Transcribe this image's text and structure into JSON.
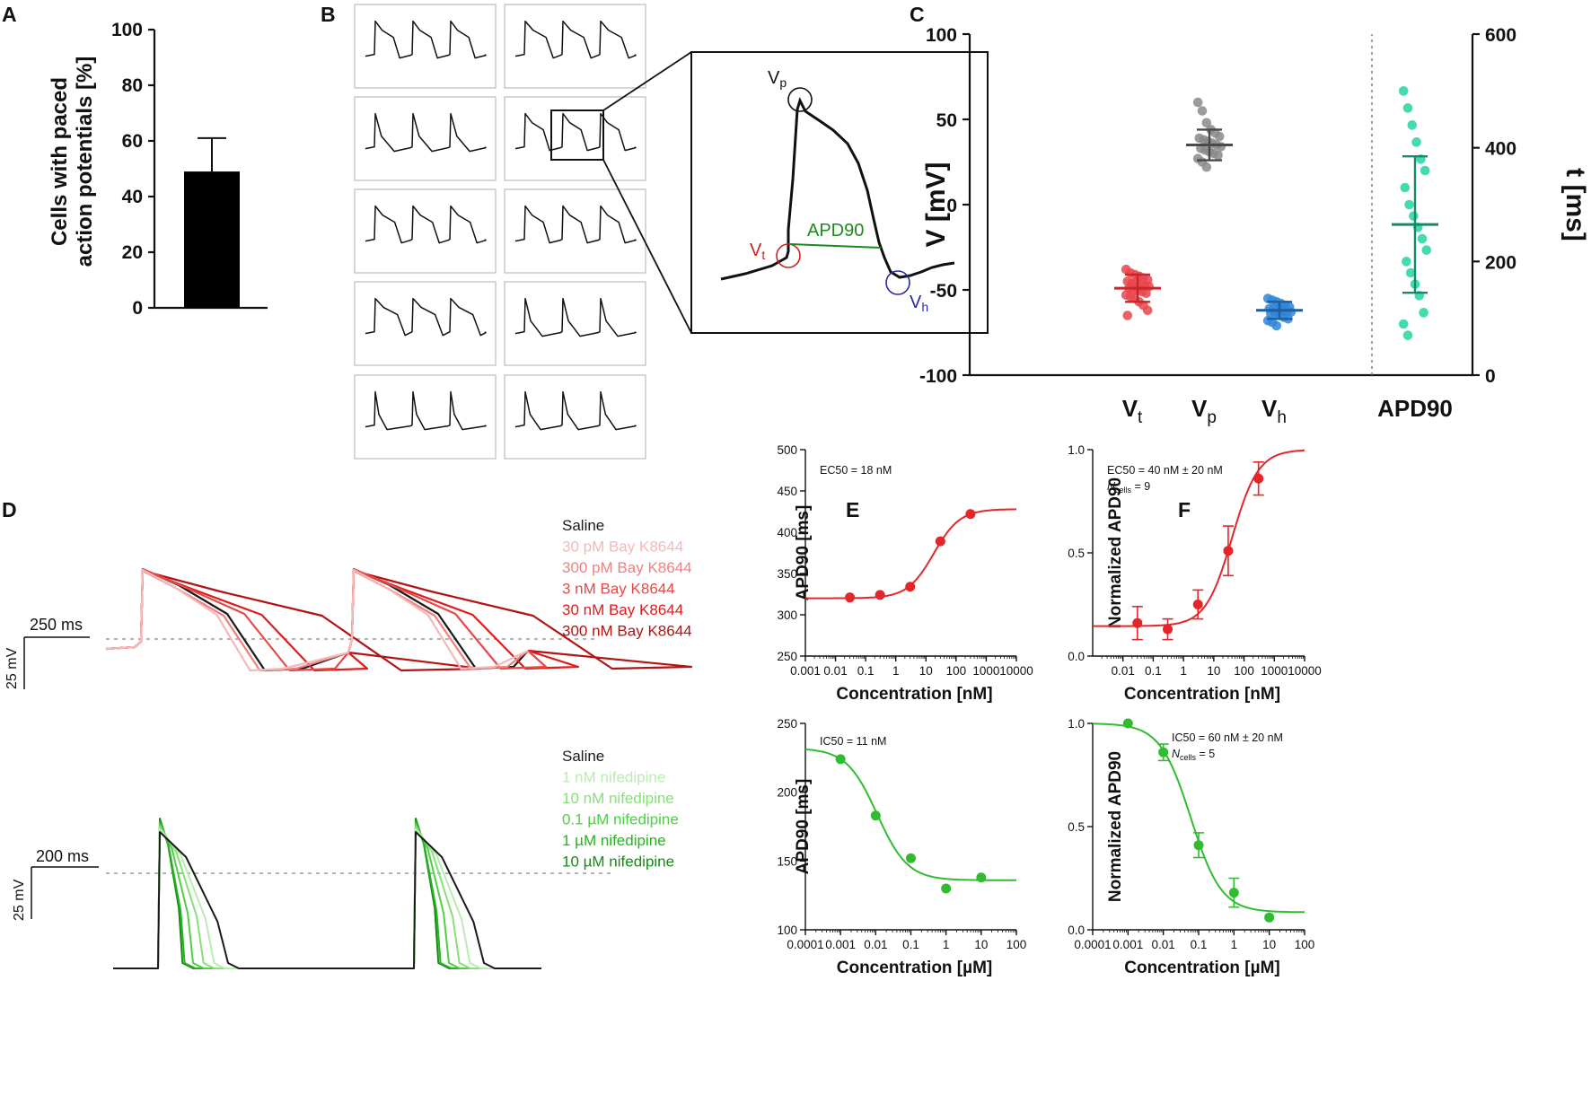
{
  "panel_labels": {
    "a": "A",
    "b": "B",
    "c": "C",
    "d": "D",
    "e": "E",
    "f": "F"
  },
  "panel_b": {
    "vp_label": "V",
    "vp_sub": "p",
    "vt_label": "V",
    "vt_sub": "t",
    "vh_label": "V",
    "vh_sub": "h",
    "apd_label": "APD90"
  },
  "panel_d": {
    "bay_scale": {
      "time": "250 ms",
      "voltage": "25 mV"
    },
    "nif_scale": {
      "time": "200 ms",
      "voltage": "25 mV"
    }
  },
  "colors": {
    "bay": [
      "#1a1a1a",
      "#f5b9b9",
      "#f08080",
      "#e84848",
      "#dd1c1c",
      "#b31313"
    ],
    "nif": [
      "#1a1a1a",
      "#b9ecb0",
      "#86e076",
      "#4fcf44",
      "#25b41f",
      "#168a17"
    ],
    "vt": "#e8474b",
    "vp": "#8a8a8a",
    "vh": "#2f86d8",
    "apd": "#26d3a3",
    "fit_red": "#e4262a",
    "fit_green": "#2fbd2f"
  },
  "chart_data": [
    {
      "id": "A",
      "type": "bar",
      "title": "",
      "xlabel": "",
      "ylabel": "Cells with paced action potentials [%]",
      "ylim": [
        0,
        100
      ],
      "yticks": [
        0,
        20,
        40,
        60,
        80,
        100
      ],
      "categories": [
        ""
      ],
      "values": [
        49
      ],
      "error": [
        12
      ]
    },
    {
      "id": "C",
      "type": "scatter",
      "ylabel": "V [mV]",
      "ylim": [
        -100,
        100
      ],
      "yticks": [
        -100,
        -50,
        0,
        50,
        100
      ],
      "ylabel_right": "t [ms]",
      "ylim_right": [
        0,
        600
      ],
      "yticks_right": [
        0,
        200,
        400,
        600
      ],
      "categories": [
        {
          "main": "V",
          "sub": "t"
        },
        {
          "main": "V",
          "sub": "p"
        },
        {
          "main": "V",
          "sub": "h"
        },
        {
          "main": "APD90",
          "sub": ""
        }
      ],
      "series": [
        {
          "name": "Vt",
          "axis": "left",
          "mean": -49,
          "sd": 8,
          "values": [
            -38,
            -40,
            -41,
            -42,
            -43,
            -44,
            -45,
            -46,
            -46,
            -47,
            -48,
            -48,
            -49,
            -50,
            -50,
            -51,
            -52,
            -53,
            -54,
            -55,
            -57,
            -59,
            -62,
            -65
          ]
        },
        {
          "name": "Vp",
          "axis": "left",
          "mean": 35,
          "sd": 9,
          "values": [
            60,
            55,
            48,
            44,
            42,
            40,
            39,
            38,
            37,
            36,
            35,
            34,
            33,
            32,
            31,
            30,
            29,
            27,
            25,
            22
          ]
        },
        {
          "name": "Vh",
          "axis": "left",
          "mean": -62,
          "sd": 5,
          "values": [
            -55,
            -56,
            -57,
            -58,
            -59,
            -60,
            -61,
            -61,
            -62,
            -62,
            -63,
            -63,
            -64,
            -64,
            -65,
            -66,
            -67,
            -68,
            -69,
            -71
          ]
        },
        {
          "name": "APD90",
          "axis": "right",
          "mean": 265,
          "sd": 120,
          "values": [
            500,
            470,
            440,
            410,
            380,
            360,
            330,
            300,
            280,
            260,
            240,
            220,
            200,
            180,
            160,
            140,
            110,
            90,
            70
          ]
        }
      ]
    },
    {
      "id": "D-top",
      "type": "line",
      "legend": [
        "Saline",
        "30 pM  Bay K8644",
        "300 pM  Bay K8644",
        "3 nM  Bay K8644",
        "30 nM  Bay K8644",
        "300 nM  Bay K8644"
      ],
      "x": "time",
      "apd_relative": [
        1.0,
        0.88,
        0.96,
        1.2,
        1.4,
        2.1
      ]
    },
    {
      "id": "D-bottom",
      "type": "line",
      "legend": [
        "Saline",
        "1 nM nifedipine",
        "10 nM nifedipine",
        "0.1 µM nifedipine",
        "1 µM nifedipine",
        "10 µM nifedipine"
      ],
      "x": "time",
      "apd_relative": [
        1.0,
        0.8,
        0.65,
        0.5,
        0.38,
        0.35
      ]
    },
    {
      "id": "E-top",
      "type": "scatter",
      "annotation": "EC50 = 18 nM",
      "xlabel": "Concentration [nM]",
      "ylabel": "APD90 [ms]",
      "xscale": "log",
      "xlim": [
        0.001,
        10000
      ],
      "xticks": [
        "0.001",
        "0.01",
        "0.1",
        "1",
        "10",
        "100",
        "1000",
        "10000"
      ],
      "ylim": [
        250,
        500
      ],
      "yticks": [
        250,
        300,
        350,
        400,
        450,
        500
      ],
      "x": [
        0.03,
        0.3,
        3,
        30,
        300
      ],
      "y": [
        321,
        324,
        334,
        389,
        422
      ],
      "fit": {
        "bottom": 320,
        "top": 428,
        "ec50": 18,
        "hill": 1
      }
    },
    {
      "id": "F-top",
      "type": "scatter",
      "annotation": "EC50 = 40 nM ± 20 nM",
      "n_label": "N",
      "n_sub": "cells",
      "n_value": " = 9",
      "xlabel": "Concentration [nM]",
      "ylabel": "Normalized APD90",
      "xscale": "log",
      "xlim": [
        0.001,
        10000
      ],
      "xticks": [
        "0.01",
        "0.1",
        "1",
        "10",
        "100",
        "1000",
        "10000"
      ],
      "ylim": [
        0,
        1.0
      ],
      "yticks": [
        "0.0",
        "0.5",
        "1.0"
      ],
      "x": [
        0.03,
        0.3,
        3,
        30,
        300
      ],
      "y": [
        0.16,
        0.13,
        0.25,
        0.51,
        0.86
      ],
      "err": [
        0.08,
        0.05,
        0.07,
        0.12,
        0.08
      ],
      "fit": {
        "bottom": 0.145,
        "top": 1.0,
        "ec50": 40,
        "hill": 1
      }
    },
    {
      "id": "E-bottom",
      "type": "scatter",
      "annotation": "IC50 = 11 nM",
      "xlabel": "Concentration [µM]",
      "ylabel": "APD90 [ms]",
      "xscale": "log",
      "xlim": [
        0.0001,
        100
      ],
      "xticks": [
        "0.0001",
        "0.001",
        "0.01",
        "0.1",
        "1",
        "10",
        "100"
      ],
      "ylim": [
        100,
        250
      ],
      "yticks": [
        100,
        150,
        200,
        250
      ],
      "x": [
        0.001,
        0.01,
        0.1,
        1,
        10
      ],
      "y": [
        224,
        183,
        152,
        130,
        138
      ],
      "fit": {
        "bottom": 136,
        "top": 232,
        "ec50": 0.011,
        "hill": 1
      }
    },
    {
      "id": "F-bottom",
      "type": "scatter",
      "annotation": "IC50 = 60 nM ± 20 nM",
      "n_label": "N",
      "n_sub": "cells",
      "n_value": " = 5",
      "xlabel": "Concentration [µM]",
      "ylabel": "Normalized APD90",
      "xscale": "log",
      "xlim": [
        0.0001,
        100
      ],
      "xticks": [
        "0.0001",
        "0.001",
        "0.01",
        "0.1",
        "1",
        "10",
        "100"
      ],
      "ylim": [
        0,
        1.0
      ],
      "yticks": [
        "0.0",
        "0.5",
        "1.0"
      ],
      "x": [
        0.001,
        0.01,
        0.1,
        1,
        10
      ],
      "y": [
        1.0,
        0.86,
        0.41,
        0.18,
        0.06
      ],
      "err": [
        0.0,
        0.04,
        0.06,
        0.07,
        0.0
      ],
      "fit": {
        "bottom": 0.085,
        "top": 1.0,
        "ec50": 0.06,
        "hill": 1
      }
    }
  ]
}
